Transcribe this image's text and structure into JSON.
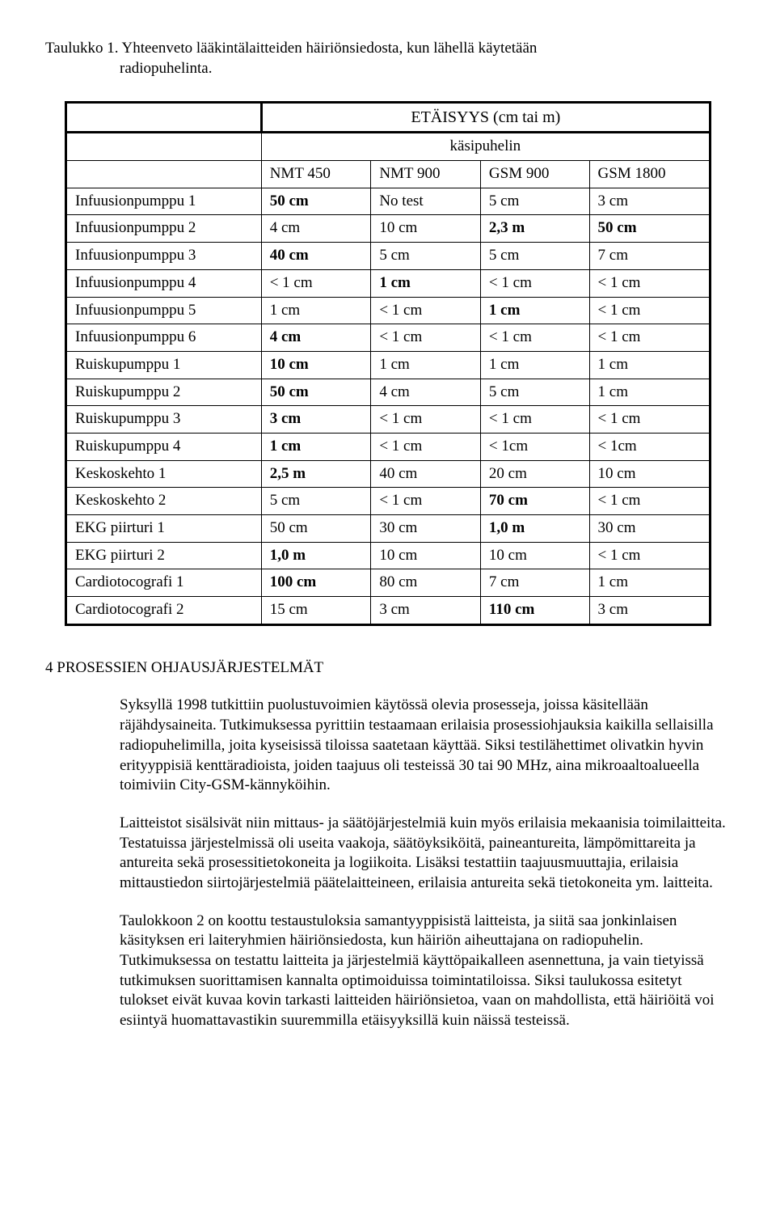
{
  "title": {
    "line1": "Taulukko 1. Yhteenveto lääkintälaitteiden häiriönsiedosta, kun lähellä käytetään",
    "line2": "radiopuhelinta."
  },
  "table": {
    "main_header": "ETÄISYYS (cm tai m)",
    "sub_header": "käsipuhelin",
    "cols": [
      "NMT 450",
      "NMT 900",
      "GSM 900",
      "GSM 1800"
    ],
    "rows": [
      {
        "label": "Infuusionpumppu 1",
        "v": [
          {
            "t": "50 cm",
            "b": 1
          },
          {
            "t": "No test",
            "b": 0
          },
          {
            "t": "5 cm",
            "b": 0
          },
          {
            "t": "3 cm",
            "b": 0
          }
        ]
      },
      {
        "label": "Infuusionpumppu 2",
        "v": [
          {
            "t": "4 cm",
            "b": 0
          },
          {
            "t": "10 cm",
            "b": 0
          },
          {
            "t": "2,3 m",
            "b": 1
          },
          {
            "t": "50 cm",
            "b": 1
          }
        ]
      },
      {
        "label": "Infuusionpumppu 3",
        "v": [
          {
            "t": "40 cm",
            "b": 1
          },
          {
            "t": "5 cm",
            "b": 0
          },
          {
            "t": "5 cm",
            "b": 0
          },
          {
            "t": "7 cm",
            "b": 0
          }
        ]
      },
      {
        "label": "Infuusionpumppu 4",
        "v": [
          {
            "t": "< 1 cm",
            "b": 0
          },
          {
            "t": "1 cm",
            "b": 1
          },
          {
            "t": "< 1 cm",
            "b": 0
          },
          {
            "t": "< 1 cm",
            "b": 0
          }
        ]
      },
      {
        "label": "Infuusionpumppu 5",
        "v": [
          {
            "t": "1 cm",
            "b": 0
          },
          {
            "t": "< 1 cm",
            "b": 0
          },
          {
            "t": "1 cm",
            "b": 1
          },
          {
            "t": "< 1 cm",
            "b": 0
          }
        ]
      },
      {
        "label": "Infuusionpumppu 6",
        "v": [
          {
            "t": "4 cm",
            "b": 1
          },
          {
            "t": "< 1 cm",
            "b": 0
          },
          {
            "t": "< 1 cm",
            "b": 0
          },
          {
            "t": "< 1 cm",
            "b": 0
          }
        ]
      },
      {
        "label": "Ruiskupumppu 1",
        "v": [
          {
            "t": "10 cm",
            "b": 1
          },
          {
            "t": "1 cm",
            "b": 0
          },
          {
            "t": "1 cm",
            "b": 0
          },
          {
            "t": "1 cm",
            "b": 0
          }
        ]
      },
      {
        "label": "Ruiskupumppu 2",
        "v": [
          {
            "t": "50 cm",
            "b": 1
          },
          {
            "t": "4 cm",
            "b": 0
          },
          {
            "t": "5 cm",
            "b": 0
          },
          {
            "t": "1 cm",
            "b": 0
          }
        ]
      },
      {
        "label": "Ruiskupumppu 3",
        "v": [
          {
            "t": "3 cm",
            "b": 1
          },
          {
            "t": "< 1 cm",
            "b": 0
          },
          {
            "t": "< 1 cm",
            "b": 0
          },
          {
            "t": "< 1 cm",
            "b": 0
          }
        ]
      },
      {
        "label": "Ruiskupumppu 4",
        "v": [
          {
            "t": "1 cm",
            "b": 1
          },
          {
            "t": "< 1 cm",
            "b": 0
          },
          {
            "t": "< 1cm",
            "b": 0
          },
          {
            "t": "< 1cm",
            "b": 0
          }
        ]
      },
      {
        "label": "Keskoskehto 1",
        "v": [
          {
            "t": "2,5 m",
            "b": 1
          },
          {
            "t": "40 cm",
            "b": 0
          },
          {
            "t": "20 cm",
            "b": 0
          },
          {
            "t": "10 cm",
            "b": 0
          }
        ]
      },
      {
        "label": "Keskoskehto 2",
        "v": [
          {
            "t": "5 cm",
            "b": 0
          },
          {
            "t": "< 1 cm",
            "b": 0
          },
          {
            "t": "70 cm",
            "b": 1
          },
          {
            "t": "< 1 cm",
            "b": 0
          }
        ]
      },
      {
        "label": "EKG piirturi 1",
        "v": [
          {
            "t": "50 cm",
            "b": 0
          },
          {
            "t": "30 cm",
            "b": 0
          },
          {
            "t": "1,0 m",
            "b": 1
          },
          {
            "t": "30 cm",
            "b": 0
          }
        ]
      },
      {
        "label": "EKG piirturi 2",
        "v": [
          {
            "t": "1,0 m",
            "b": 1
          },
          {
            "t": "10 cm",
            "b": 0
          },
          {
            "t": "10 cm",
            "b": 0
          },
          {
            "t": "< 1 cm",
            "b": 0
          }
        ]
      },
      {
        "label": "Cardiotocografi 1",
        "v": [
          {
            "t": "100 cm",
            "b": 1
          },
          {
            "t": "80 cm",
            "b": 0
          },
          {
            "t": "7 cm",
            "b": 0
          },
          {
            "t": "1 cm",
            "b": 0
          }
        ]
      },
      {
        "label": "Cardiotocografi 2",
        "v": [
          {
            "t": "15 cm",
            "b": 0
          },
          {
            "t": "3 cm",
            "b": 0
          },
          {
            "t": "110 cm",
            "b": 1
          },
          {
            "t": "3 cm",
            "b": 0
          }
        ]
      }
    ]
  },
  "section_heading": "4  PROSESSIEN OHJAUSJÄRJESTELMÄT",
  "paragraphs": [
    "Syksyllä 1998 tutkittiin puolustuvoimien käytössä olevia prosesseja, joissa käsitellään räjähdysaineita. Tutkimuksessa pyrittiin testaamaan erilaisia prosessiohjauksia kaikilla sellaisilla radiopuhelimilla, joita kyseisissä tiloissa saatetaan käyttää. Siksi testilähettimet olivatkin hyvin erityyppisiä kenttäradioista, joiden taajuus oli testeissä 30 tai 90 MHz, aina mikroaaltoalueella toimiviin City-GSM-kännyköihin.",
    "Laitteistot sisälsivät niin mittaus- ja säätöjärjestelmiä kuin myös erilaisia mekaanisia toimilaitteita. Testatuissa järjestelmissä oli useita vaakoja, säätöyksiköitä, paineantureita, lämpömittareita ja antureita sekä prosessitietokoneita ja logiikoita. Lisäksi testattiin taajuusmuuttajia, erilaisia mittaustiedon siirtojärjestelmiä päätelaitteineen, erilaisia antureita sekä tietokoneita ym. laitteita.",
    "Taulokkoon 2 on koottu testaustuloksia samantyyppisistä laitteista, ja siitä saa jonkinlaisen käsityksen eri laiteryhmien häiriönsiedosta, kun häiriön aiheuttajana on radiopuhelin. Tutkimuksessa on testattu laitteita ja järjestelmiä käyttöpaikalleen asennettuna, ja vain tietyissä tutkimuksen suorittamisen kannalta optimoiduissa toimintatiloissa. Siksi taulukossa esitetyt tulokset eivät kuvaa kovin tarkasti laitteiden häiriönsietoa, vaan on mahdollista, että häiriöitä voi esiintyä huomattavastikin suuremmilla etäisyyksillä kuin näissä testeissä."
  ]
}
